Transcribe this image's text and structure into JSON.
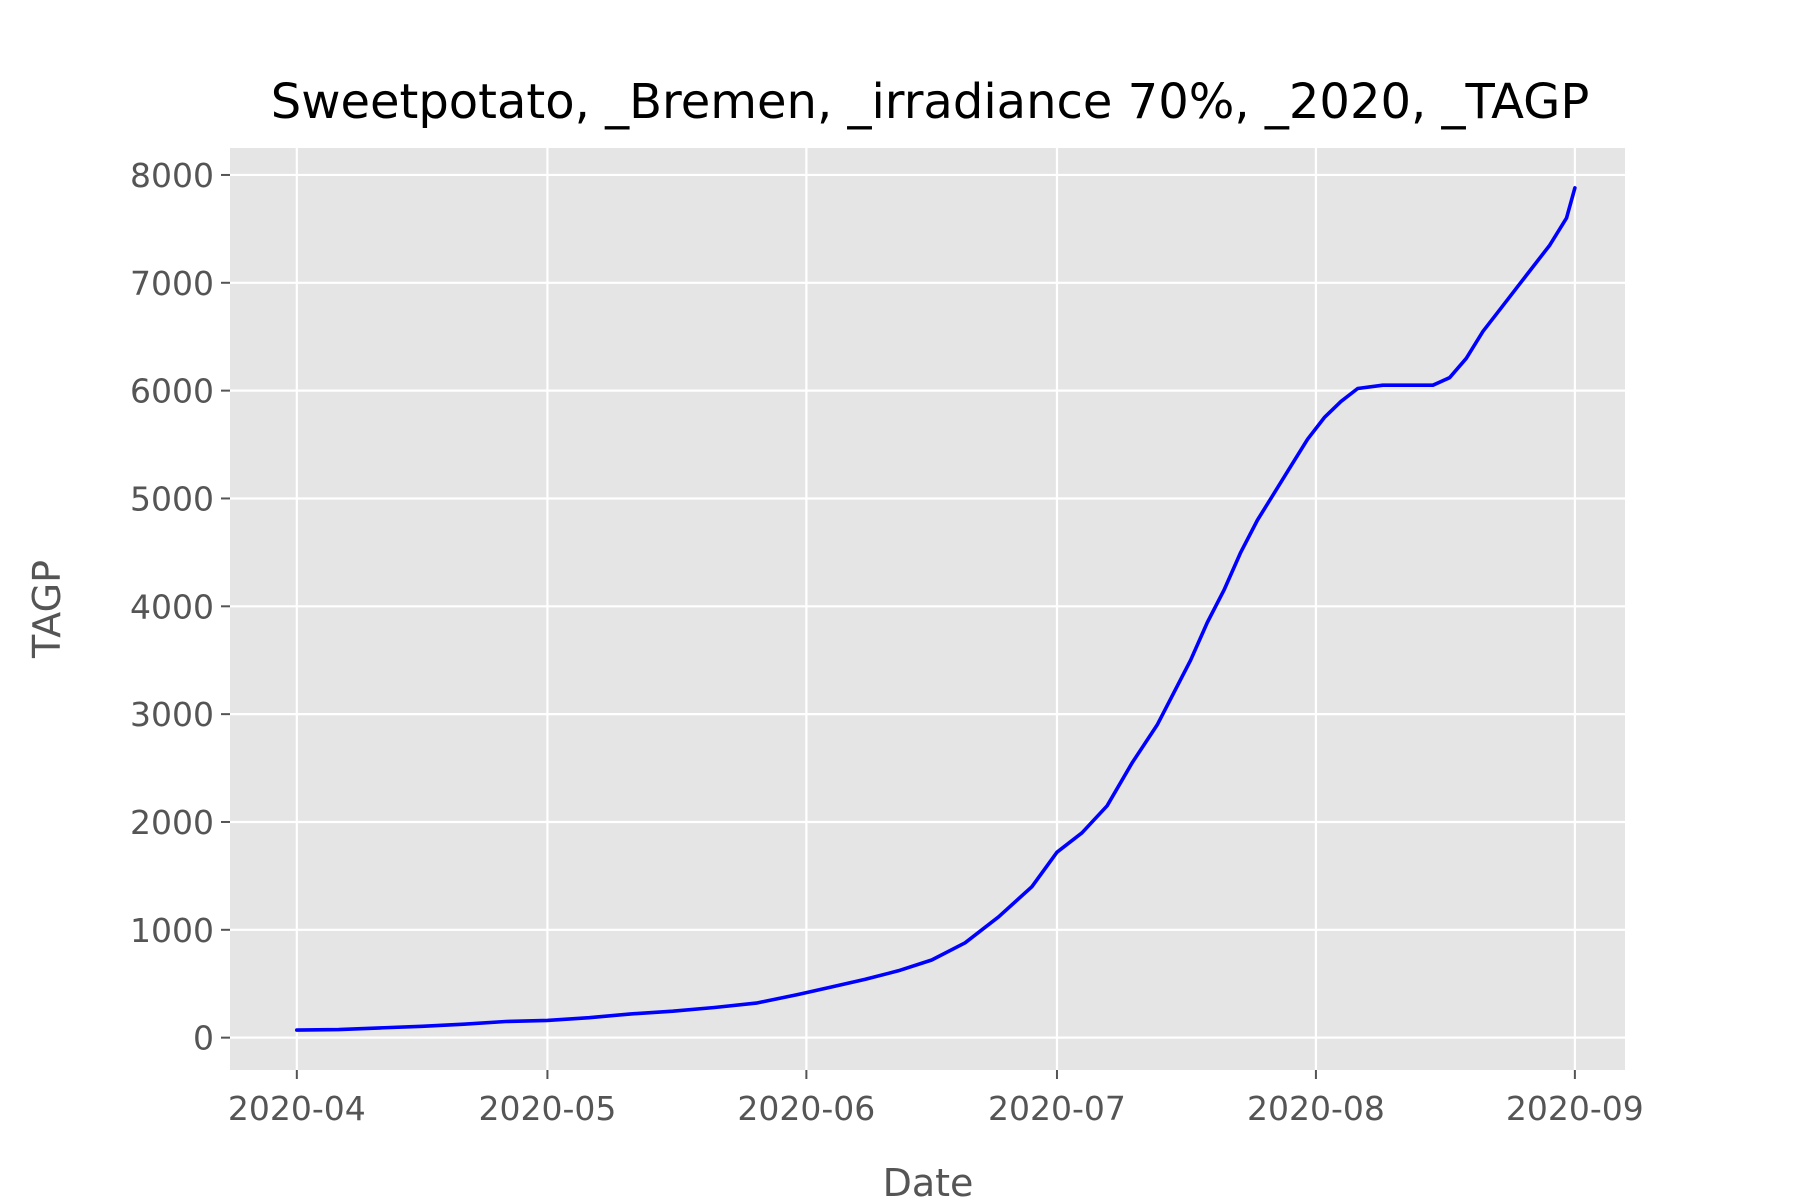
{
  "chart_data": {
    "type": "line",
    "title": "Sweetpotato, _Bremen, _irradiance 70%, _2020, _TAGP",
    "xlabel": "Date",
    "ylabel": "TAGP",
    "xlim": [
      "2020-03-24",
      "2020-09-07"
    ],
    "ylim": [
      -300,
      8250
    ],
    "grid": true,
    "background": "#e5e5e5",
    "x_ticks": [
      "2020-04-01",
      "2020-05-01",
      "2020-06-01",
      "2020-07-01",
      "2020-08-01",
      "2020-09-01"
    ],
    "x_tick_labels": [
      "2020-04",
      "2020-05",
      "2020-06",
      "2020-07",
      "2020-08",
      "2020-09"
    ],
    "y_ticks": [
      0,
      1000,
      2000,
      3000,
      4000,
      5000,
      6000,
      7000,
      8000
    ],
    "y_tick_labels": [
      "0",
      "1000",
      "2000",
      "3000",
      "4000",
      "5000",
      "6000",
      "7000",
      "8000"
    ],
    "series": [
      {
        "color": "#0000ff",
        "x": [
          "2020-04-01",
          "2020-04-06",
          "2020-04-11",
          "2020-04-16",
          "2020-04-21",
          "2020-04-26",
          "2020-05-01",
          "2020-05-06",
          "2020-05-11",
          "2020-05-16",
          "2020-05-21",
          "2020-05-26",
          "2020-05-31",
          "2020-06-04",
          "2020-06-08",
          "2020-06-12",
          "2020-06-16",
          "2020-06-20",
          "2020-06-24",
          "2020-06-28",
          "2020-07-01",
          "2020-07-04",
          "2020-07-07",
          "2020-07-10",
          "2020-07-13",
          "2020-07-15",
          "2020-07-17",
          "2020-07-19",
          "2020-07-21",
          "2020-07-23",
          "2020-07-25",
          "2020-07-27",
          "2020-07-29",
          "2020-07-31",
          "2020-08-02",
          "2020-08-04",
          "2020-08-06",
          "2020-08-09",
          "2020-08-12",
          "2020-08-15",
          "2020-08-17",
          "2020-08-19",
          "2020-08-21",
          "2020-08-23",
          "2020-08-25",
          "2020-08-27",
          "2020-08-29",
          "2020-08-31",
          "2020-09-01"
        ],
        "y": [
          70,
          75,
          90,
          105,
          125,
          150,
          160,
          185,
          220,
          245,
          280,
          320,
          400,
          470,
          540,
          620,
          720,
          880,
          1120,
          1400,
          1720,
          1900,
          2150,
          2550,
          2900,
          3200,
          3500,
          3850,
          4150,
          4500,
          4800,
          5050,
          5300,
          5550,
          5750,
          5900,
          6020,
          6050,
          6050,
          6050,
          6120,
          6300,
          6550,
          6750,
          6950,
          7150,
          7350,
          7600,
          7880
        ]
      }
    ]
  }
}
